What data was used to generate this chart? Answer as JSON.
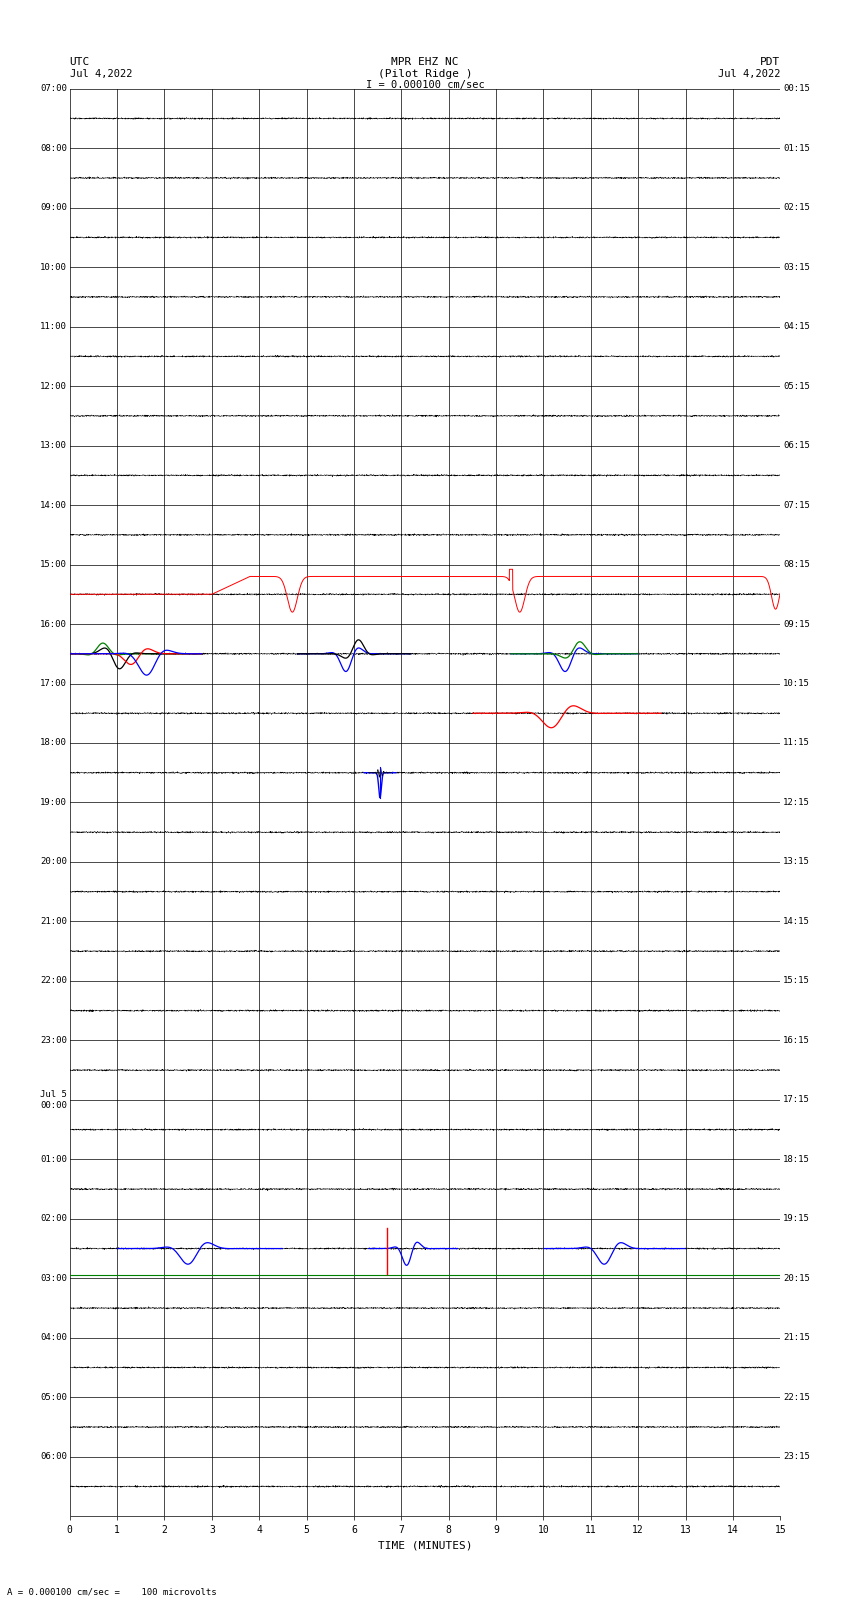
{
  "title_line1": "MPR EHZ NC",
  "title_line2": "(Pilot Ridge )",
  "title_line3": "I = 0.000100 cm/sec",
  "left_label": "UTC",
  "left_date": "Jul 4,2022",
  "right_label": "PDT",
  "right_date": "Jul 4,2022",
  "bottom_label": "TIME (MINUTES)",
  "footer_text": "= 0.000100 cm/sec =    100 microvolts",
  "n_rows": 24,
  "utc_labels": [
    "07:00",
    "08:00",
    "09:00",
    "10:00",
    "11:00",
    "12:00",
    "13:00",
    "14:00",
    "15:00",
    "16:00",
    "17:00",
    "18:00",
    "19:00",
    "20:00",
    "21:00",
    "22:00",
    "23:00",
    "Jul 5\n00:00",
    "01:00",
    "02:00",
    "03:00",
    "04:00",
    "05:00",
    "06:00"
  ],
  "pdt_labels": [
    "00:15",
    "01:15",
    "02:15",
    "03:15",
    "04:15",
    "05:15",
    "06:15",
    "07:15",
    "08:15",
    "09:15",
    "10:15",
    "11:15",
    "12:15",
    "13:15",
    "14:15",
    "15:15",
    "16:15",
    "17:15",
    "18:15",
    "19:15",
    "20:15",
    "21:15",
    "22:15",
    "23:15"
  ],
  "background_color": "#ffffff",
  "col_black": "#000000",
  "col_blue": "#0000ff",
  "col_red": "#ff0000",
  "col_green": "#008000"
}
